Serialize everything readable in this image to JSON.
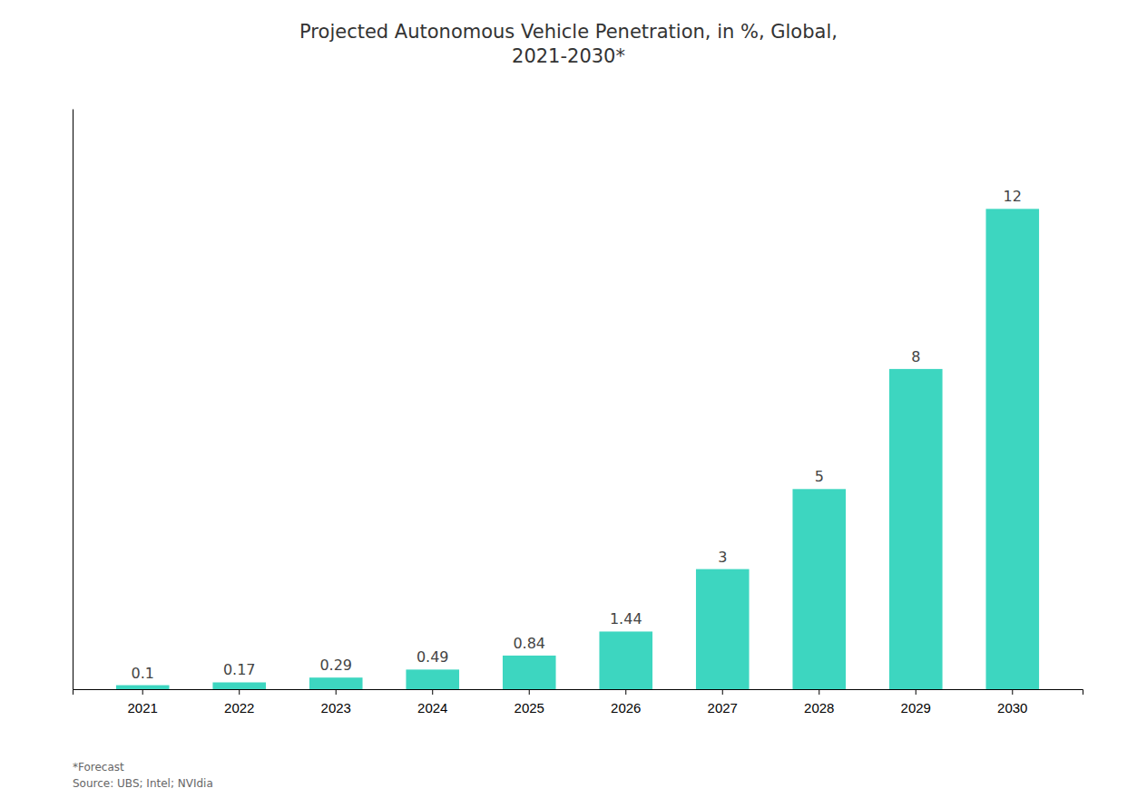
{
  "chart_data": {
    "type": "bar",
    "title": "Projected Autonomous Vehicle Penetration, in %, Global,\n2021-2030*",
    "categories": [
      "2021",
      "2022",
      "2023",
      "2024",
      "2025",
      "2026",
      "2027",
      "2028",
      "2029",
      "2030"
    ],
    "values": [
      0.1,
      0.17,
      0.29,
      0.49,
      0.84,
      1.44,
      3,
      5,
      8,
      12
    ],
    "color": "#3DD6C0",
    "ylim": [
      0,
      14.5
    ],
    "grid": false,
    "data_labels": true,
    "tick_labels": "x",
    "annotations": [
      "*Forecast\nSource: UBS; Intel; NVIdia"
    ]
  }
}
